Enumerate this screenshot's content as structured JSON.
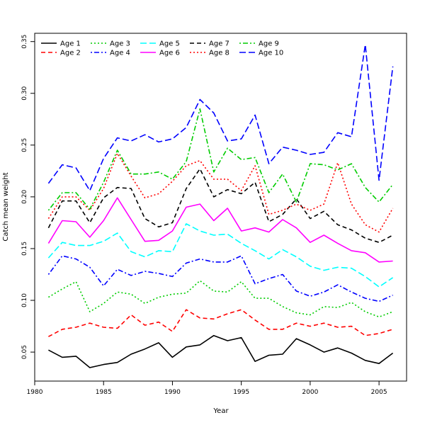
{
  "chart_data": {
    "type": "line",
    "title": "",
    "xlabel": "Year",
    "ylabel": "Catch mean weight",
    "xlim": [
      1980,
      2007
    ],
    "ylim": [
      0.022,
      0.358
    ],
    "xticks": [
      1980,
      1985,
      1990,
      1995,
      2000,
      2005
    ],
    "xtick_labels": [
      "1980",
      "1985",
      "1990",
      "1995",
      "2000",
      "2005"
    ],
    "yticks": [
      0.05,
      0.1,
      0.15,
      0.2,
      0.25,
      0.3,
      0.35
    ],
    "ytick_labels": [
      "0.05",
      "0.10",
      "0.15",
      "0.20",
      "0.25",
      "0.30",
      "0.35"
    ],
    "grid": false,
    "legend_position": "top-left",
    "x": [
      1981,
      1982,
      1983,
      1984,
      1985,
      1986,
      1987,
      1988,
      1989,
      1990,
      1991,
      1992,
      1993,
      1994,
      1995,
      1996,
      1997,
      1998,
      1999,
      2000,
      2001,
      2002,
      2003,
      2004,
      2005,
      2006
    ],
    "series": [
      {
        "name": "Age 1",
        "color": "#000000",
        "dash": "solid",
        "values": [
          0.052,
          0.045,
          0.046,
          0.035,
          0.038,
          0.04,
          0.048,
          0.053,
          0.059,
          0.045,
          0.055,
          0.057,
          0.066,
          0.061,
          0.064,
          0.041,
          0.047,
          0.048,
          0.063,
          0.057,
          0.05,
          0.054,
          0.049,
          0.042,
          0.039,
          0.049
        ]
      },
      {
        "name": "Age 2",
        "color": "#ff0000",
        "dash": "dashed",
        "values": [
          0.065,
          0.072,
          0.074,
          0.078,
          0.074,
          0.073,
          0.086,
          0.076,
          0.079,
          0.07,
          0.091,
          0.083,
          0.082,
          0.087,
          0.091,
          0.081,
          0.072,
          0.072,
          0.078,
          0.075,
          0.078,
          0.074,
          0.075,
          0.066,
          0.068,
          0.072
        ]
      },
      {
        "name": "Age 3",
        "color": "#00cc00",
        "dash": "dotted",
        "values": [
          0.103,
          0.111,
          0.118,
          0.089,
          0.097,
          0.108,
          0.106,
          0.097,
          0.103,
          0.106,
          0.107,
          0.119,
          0.109,
          0.108,
          0.118,
          0.102,
          0.102,
          0.094,
          0.088,
          0.086,
          0.094,
          0.093,
          0.098,
          0.089,
          0.084,
          0.089
        ]
      },
      {
        "name": "Age 4",
        "color": "#0000ff",
        "dash": "dotdash",
        "values": [
          0.125,
          0.143,
          0.14,
          0.132,
          0.114,
          0.13,
          0.124,
          0.128,
          0.126,
          0.123,
          0.136,
          0.14,
          0.137,
          0.137,
          0.143,
          0.116,
          0.121,
          0.125,
          0.109,
          0.104,
          0.108,
          0.115,
          0.108,
          0.102,
          0.099,
          0.105
        ]
      },
      {
        "name": "Age 5",
        "color": "#00ffff",
        "dash": "longdash",
        "values": [
          0.141,
          0.156,
          0.153,
          0.153,
          0.157,
          0.165,
          0.147,
          0.142,
          0.148,
          0.147,
          0.174,
          0.167,
          0.163,
          0.164,
          0.155,
          0.148,
          0.14,
          0.149,
          0.142,
          0.133,
          0.129,
          0.132,
          0.131,
          0.123,
          0.113,
          0.122
        ]
      },
      {
        "name": "Age 6",
        "color": "#ff00ff",
        "dash": "solid",
        "values": [
          0.155,
          0.177,
          0.176,
          0.161,
          0.177,
          0.199,
          0.178,
          0.157,
          0.158,
          0.167,
          0.19,
          0.193,
          0.177,
          0.189,
          0.167,
          0.17,
          0.166,
          0.178,
          0.17,
          0.156,
          0.163,
          0.155,
          0.148,
          0.146,
          0.137,
          0.138
        ]
      },
      {
        "name": "Age 7",
        "color": "#000000",
        "dash": "dashed",
        "values": [
          0.17,
          0.196,
          0.196,
          0.175,
          0.199,
          0.209,
          0.208,
          0.179,
          0.171,
          0.175,
          0.208,
          0.227,
          0.2,
          0.207,
          0.203,
          0.214,
          0.176,
          0.183,
          0.198,
          0.179,
          0.186,
          0.173,
          0.168,
          0.16,
          0.156,
          0.163
        ]
      },
      {
        "name": "Age 8",
        "color": "#ff0000",
        "dash": "dotted",
        "values": [
          0.179,
          0.2,
          0.2,
          0.187,
          0.208,
          0.242,
          0.22,
          0.199,
          0.203,
          0.215,
          0.23,
          0.235,
          0.217,
          0.217,
          0.206,
          0.23,
          0.183,
          0.187,
          0.193,
          0.187,
          0.193,
          0.233,
          0.193,
          0.173,
          0.166,
          0.189
        ]
      },
      {
        "name": "Age 9",
        "color": "#00cc00",
        "dash": "dotdash",
        "values": [
          0.187,
          0.204,
          0.204,
          0.188,
          0.214,
          0.245,
          0.222,
          0.222,
          0.224,
          0.217,
          0.234,
          0.285,
          0.224,
          0.247,
          0.236,
          0.238,
          0.204,
          0.222,
          0.195,
          0.232,
          0.231,
          0.226,
          0.232,
          0.209,
          0.195,
          0.212
        ]
      },
      {
        "name": "Age 10",
        "color": "#0000ff",
        "dash": "longdash",
        "values": [
          0.213,
          0.231,
          0.228,
          0.206,
          0.237,
          0.257,
          0.254,
          0.26,
          0.253,
          0.256,
          0.267,
          0.294,
          0.281,
          0.254,
          0.256,
          0.279,
          0.232,
          0.248,
          0.245,
          0.241,
          0.243,
          0.262,
          0.258,
          0.347,
          0.216,
          0.326
        ]
      }
    ]
  }
}
